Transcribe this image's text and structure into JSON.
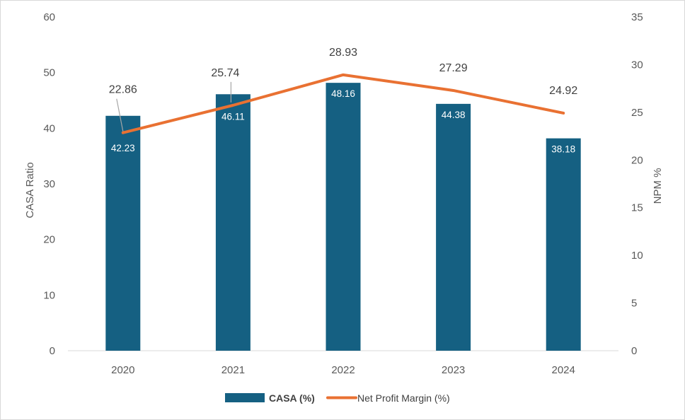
{
  "chart_data": {
    "type": "bar",
    "categories": [
      "2020",
      "2021",
      "2022",
      "2023",
      "2024"
    ],
    "series": [
      {
        "name": "CASA (%)",
        "type": "bar",
        "axis": "left",
        "color": "#156082",
        "values": [
          42.23,
          46.11,
          48.16,
          44.38,
          38.18
        ],
        "labels": [
          "42.23",
          "46.11",
          "48.16",
          "44.38",
          "38.18"
        ]
      },
      {
        "name": "Net Profit Margin (%)",
        "type": "line",
        "axis": "right",
        "color": "#E97132",
        "values": [
          22.86,
          25.74,
          28.93,
          27.29,
          24.92
        ],
        "labels": [
          "22.86",
          "25.74",
          "28.93",
          "27.29",
          "24.92"
        ]
      }
    ],
    "ylabel": "CASA Ratio",
    "y2label": "NPM %",
    "ylim": [
      0,
      60
    ],
    "y2lim": [
      0,
      35
    ],
    "yticks": [
      "0",
      "10",
      "20",
      "30",
      "40",
      "50",
      "60"
    ],
    "y2ticks": [
      "0",
      "5",
      "10",
      "15",
      "20",
      "25",
      "30",
      "35"
    ],
    "grid": false,
    "legend": "bottom"
  }
}
